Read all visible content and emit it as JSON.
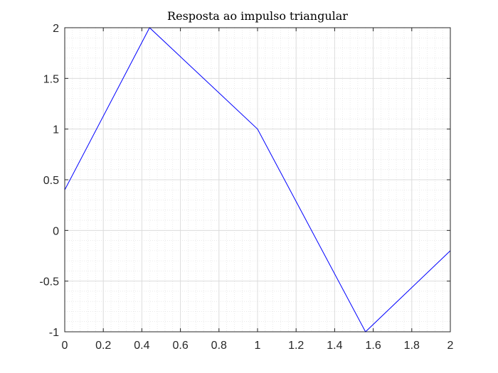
{
  "chart_data": {
    "type": "line",
    "title": "Resposta ao impulso triangular",
    "xlabel": "",
    "ylabel": "",
    "xlim": [
      0,
      2
    ],
    "ylim": [
      -1,
      2
    ],
    "xticks": [
      0,
      0.2,
      0.4,
      0.6,
      0.8,
      1,
      1.2,
      1.4,
      1.6,
      1.8,
      2
    ],
    "xtick_labels": [
      "0",
      "0.2",
      "0.4",
      "0.6",
      "0.8",
      "1",
      "1.2",
      "1.4",
      "1.6",
      "1.8",
      "2"
    ],
    "yticks": [
      -1,
      -0.5,
      0,
      0.5,
      1,
      1.5,
      2
    ],
    "ytick_labels": [
      "-1",
      "-0.5",
      "0",
      "0.5",
      "1",
      "1.5",
      "2"
    ],
    "grid": true,
    "minor_grid": true,
    "series": [
      {
        "color": "#0000ff",
        "x": [
          0,
          0.44,
          1.0,
          1.56,
          2.0
        ],
        "y": [
          0.4,
          2.0,
          1.0,
          -1.0,
          -0.2
        ]
      }
    ]
  }
}
